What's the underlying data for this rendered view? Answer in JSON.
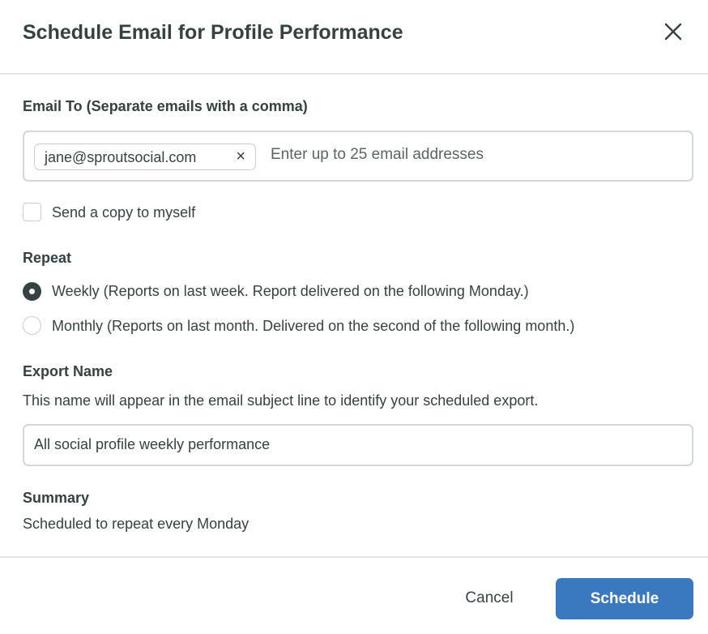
{
  "dialog": {
    "title": "Schedule Email for Profile Performance",
    "close_icon": "close-icon"
  },
  "email_to": {
    "label": "Email To (Separate emails with a comma)",
    "chips": [
      "jane@sproutsocial.com"
    ],
    "chip_remove": "×",
    "placeholder": "Enter up to 25 email addresses"
  },
  "send_copy": {
    "label": "Send a copy to myself",
    "checked": false
  },
  "repeat": {
    "label": "Repeat",
    "options": [
      {
        "label": "Weekly (Reports on last week. Report delivered on the following Monday.)",
        "selected": true
      },
      {
        "label": "Monthly (Reports on last month. Delivered on the second of the following month.)",
        "selected": false
      }
    ]
  },
  "export_name": {
    "label": "Export Name",
    "description": "This name will appear in the email subject line to identify your scheduled export.",
    "value": "All social profile weekly performance"
  },
  "summary": {
    "label": "Summary",
    "text": "Scheduled to repeat every Monday"
  },
  "footer": {
    "cancel": "Cancel",
    "schedule": "Schedule"
  },
  "colors": {
    "primary": "#3a79bf",
    "text": "#364141",
    "border": "#d3d7d7"
  }
}
